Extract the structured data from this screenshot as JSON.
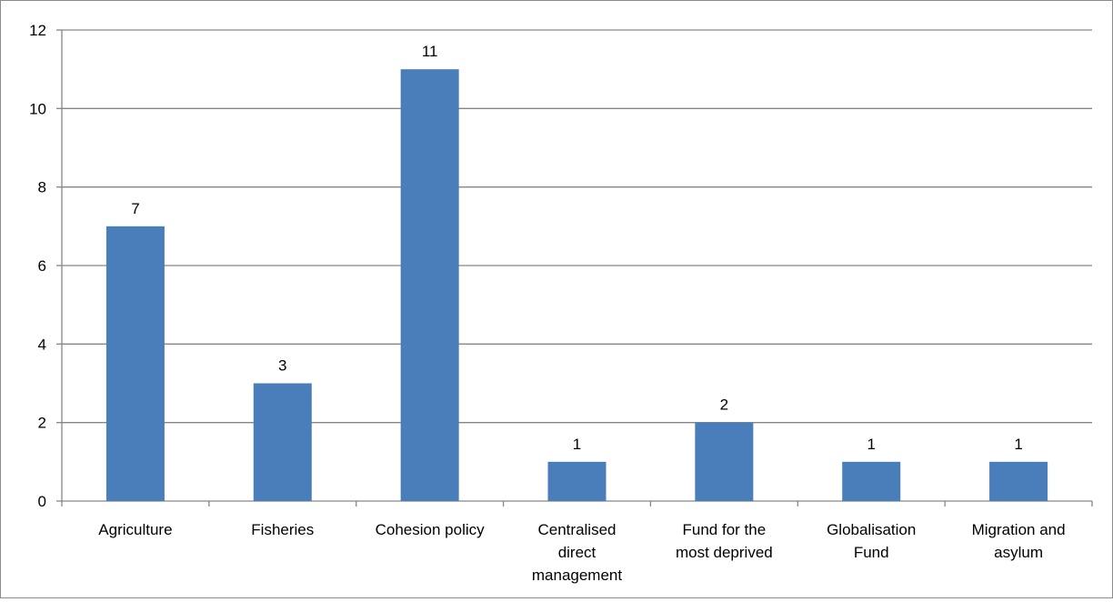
{
  "chart_data": {
    "type": "bar",
    "title": "",
    "xlabel": "",
    "ylabel": "",
    "categories": [
      "Agriculture",
      "Fisheries",
      "Cohesion policy",
      "Centralised direct management",
      "Fund for the most deprived",
      "Globalisation Fund",
      "Migration and asylum"
    ],
    "category_lines": [
      [
        "Agriculture"
      ],
      [
        "Fisheries"
      ],
      [
        "Cohesion policy"
      ],
      [
        "Centralised",
        "direct",
        "management"
      ],
      [
        "Fund for the",
        "most deprived"
      ],
      [
        "Globalisation",
        "Fund"
      ],
      [
        "Migration and",
        "asylum"
      ]
    ],
    "values": [
      7,
      3,
      11,
      1,
      2,
      1,
      1
    ],
    "ylim": [
      0,
      12
    ],
    "yticks": [
      0,
      2,
      4,
      6,
      8,
      10,
      12
    ],
    "grid": true,
    "legend": "none",
    "data_labels": true,
    "colors": {
      "bar": "#4a7ebb",
      "grid": "#868686",
      "axis": "#868686"
    }
  }
}
